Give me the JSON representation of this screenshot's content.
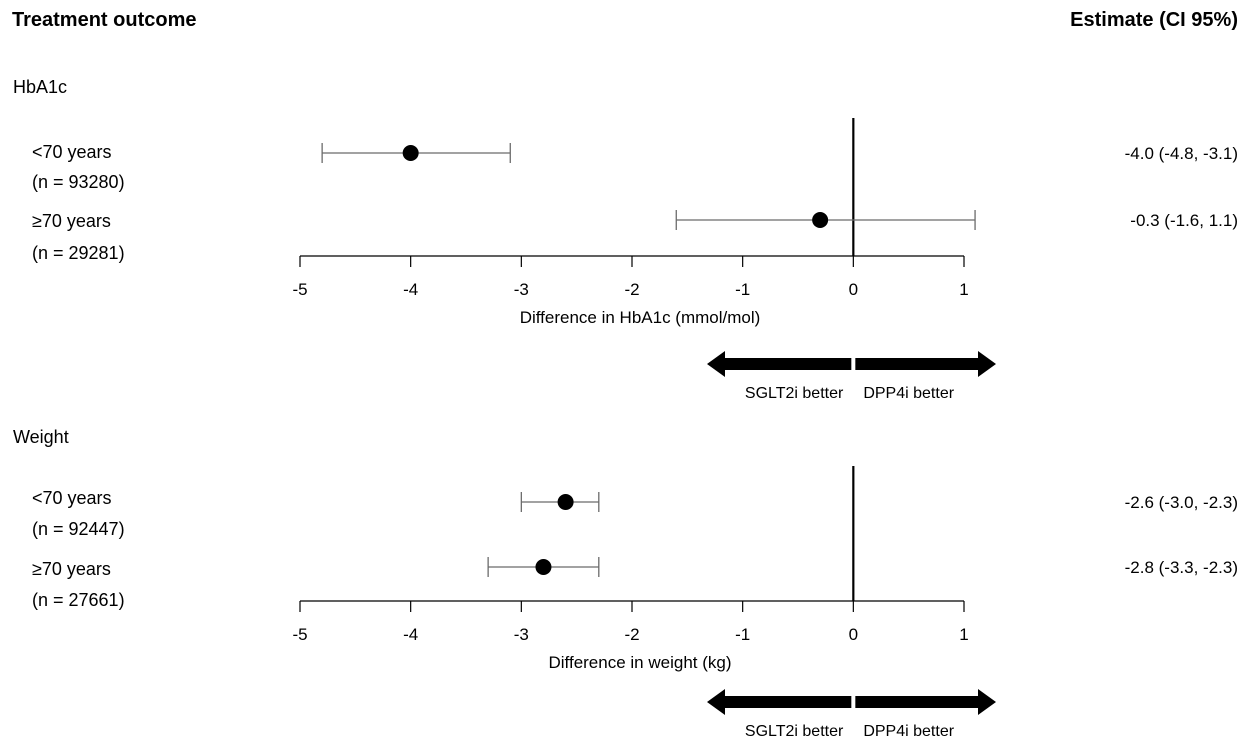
{
  "header": {
    "left_title": "Treatment outcome",
    "right_title": "Estimate (CI 95%)"
  },
  "chart_data": [
    {
      "type": "scatter",
      "section_title": "HbA1c",
      "xlabel": "Difference in HbA1c (mmol/mol)",
      "xlim": [
        -5,
        1
      ],
      "xticks": [
        -5,
        -4,
        -3,
        -2,
        -1,
        0,
        1
      ],
      "tick_labels": [
        "-5",
        "-4",
        "-3",
        "-2",
        "-1",
        "0",
        "1"
      ],
      "reference_line": 0,
      "rows": [
        {
          "group": "<70 years",
          "n": "(n = 93280)",
          "estimate": -4.0,
          "ci_low": -4.8,
          "ci_high": -3.1,
          "label": "-4.0 (-4.8, -3.1)"
        },
        {
          "group": "≥70 years",
          "n": "(n = 29281)",
          "estimate": -0.3,
          "ci_low": -1.6,
          "ci_high": 1.1,
          "label": "-0.3 (-1.6, 1.1)"
        }
      ],
      "direction": {
        "left": "SGLT2i better",
        "right": "DPP4i better"
      }
    },
    {
      "type": "scatter",
      "section_title": "Weight",
      "xlabel": "Difference in weight (kg)",
      "xlim": [
        -5,
        1
      ],
      "xticks": [
        -5,
        -4,
        -3,
        -2,
        -1,
        0,
        1
      ],
      "tick_labels": [
        "-5",
        "-4",
        "-3",
        "-2",
        "-1",
        "0",
        "1"
      ],
      "reference_line": 0,
      "rows": [
        {
          "group": "<70 years",
          "n": "(n = 92447)",
          "estimate": -2.6,
          "ci_low": -3.0,
          "ci_high": -2.3,
          "label": "-2.6 (-3.0, -2.3)"
        },
        {
          "group": "≥70 years",
          "n": "(n = 27661)",
          "estimate": -2.8,
          "ci_low": -3.3,
          "ci_high": -2.3,
          "label": "-2.8 (-3.3, -2.3)"
        }
      ],
      "direction": {
        "left": "SGLT2i better",
        "right": "DPP4i better"
      }
    }
  ]
}
